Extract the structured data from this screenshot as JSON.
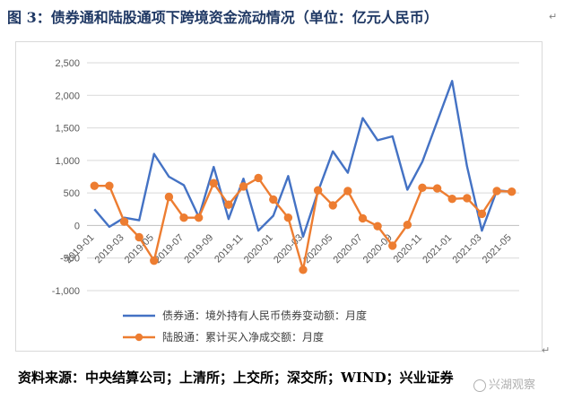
{
  "figure": {
    "title": "图 3：债券通和陆股通项下跨境资金流动情况（单位：亿元人民币）",
    "source": "资料来源：中央结算公司；上清所；上交所；深交所；WIND；兴业证券",
    "watermark": "兴湖观察",
    "paragraph_mark": "↵"
  },
  "chart_data": {
    "type": "line",
    "title": "",
    "xlabel": "",
    "ylabel": "",
    "ylim": [
      -1000,
      2500
    ],
    "yticks": [
      -1000,
      -500,
      0,
      500,
      1000,
      1500,
      2000,
      2500
    ],
    "ytick_labels": [
      "-1,000",
      "-500",
      "0",
      "500",
      "1,000",
      "1,500",
      "2,000",
      "2,500"
    ],
    "x": [
      "2019-01",
      "2019-02",
      "2019-03",
      "2019-04",
      "2019-05",
      "2019-06",
      "2019-07",
      "2019-08",
      "2019-09",
      "2019-10",
      "2019-11",
      "2019-12",
      "2020-01",
      "2020-02",
      "2020-03",
      "2020-04",
      "2020-05",
      "2020-06",
      "2020-07",
      "2020-08",
      "2020-09",
      "2020-10",
      "2020-11",
      "2020-12",
      "2021-01",
      "2021-02",
      "2021-03",
      "2021-04",
      "2021-05"
    ],
    "xtick_labels": [
      "2019-01",
      "2019-03",
      "2019-05",
      "2019-07",
      "2019-09",
      "2019-11",
      "2020-01",
      "2020-03",
      "2020-05",
      "2020-07",
      "2020-09",
      "2020-11",
      "2021-01",
      "2021-03",
      "2021-05"
    ],
    "grid": true,
    "legend_position": "bottom",
    "series": [
      {
        "name": "债券通：境外持有人民币债券变动额：月度",
        "color": "#4472c4",
        "marker": "none",
        "values": [
          250,
          -20,
          120,
          80,
          1100,
          750,
          620,
          130,
          900,
          100,
          720,
          -80,
          150,
          760,
          -170,
          520,
          1140,
          810,
          1650,
          1310,
          1370,
          550,
          980,
          1600,
          2220,
          910,
          -80,
          540,
          520
        ]
      },
      {
        "name": "陆股通：累计买入净成交额：月度",
        "color": "#ed7d31",
        "marker": "circle",
        "values": [
          610,
          610,
          60,
          -180,
          -540,
          440,
          120,
          120,
          650,
          320,
          600,
          730,
          400,
          120,
          -680,
          540,
          310,
          530,
          110,
          -10,
          -310,
          10,
          580,
          570,
          410,
          420,
          180,
          530,
          520
        ]
      }
    ]
  }
}
